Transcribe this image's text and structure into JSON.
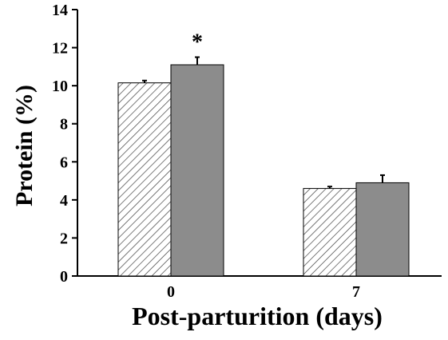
{
  "chart_data": {
    "type": "bar",
    "title": "",
    "xlabel": "Post-parturition (days)",
    "ylabel": "Protein (%)",
    "categories": [
      "0",
      "7"
    ],
    "ylim": [
      0,
      14
    ],
    "yticks": [
      0,
      2,
      4,
      6,
      8,
      10,
      12,
      14
    ],
    "grid": false,
    "legend": "none",
    "series": [
      {
        "pattern": "hatched",
        "fill": "#ffffff",
        "stroke": "#000000",
        "values": [
          10.15,
          4.6
        ],
        "errors": [
          0.12,
          0.1
        ]
      },
      {
        "pattern": "solid",
        "fill": "#8c8c8c",
        "stroke": "#000000",
        "values": [
          11.1,
          4.9
        ],
        "errors": [
          0.4,
          0.4
        ]
      }
    ],
    "annotations": [
      {
        "text": "*",
        "category": "0",
        "series_index": 1
      }
    ]
  }
}
